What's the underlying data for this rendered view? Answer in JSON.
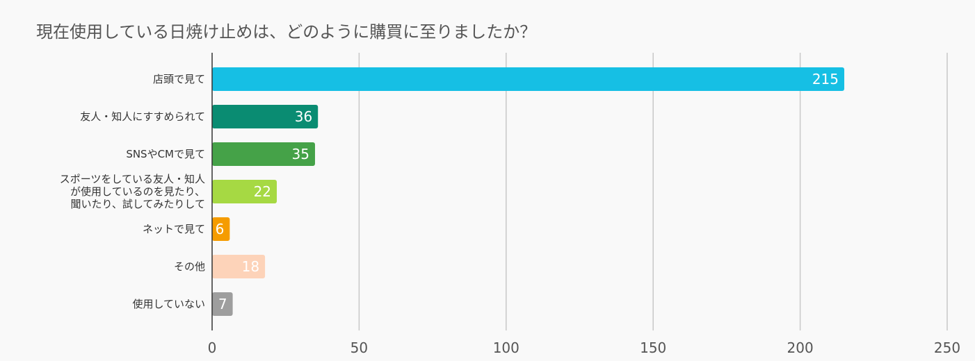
{
  "chart_data": {
    "type": "bar",
    "orientation": "horizontal",
    "title": "現在使用している日焼け止めは、どのように購買に至りましたか？",
    "categories": [
      [
        "店頭で見て"
      ],
      [
        "友人・知人にすすめられて"
      ],
      [
        "SNSやCMで見て"
      ],
      [
        "スポーツをしている友人・知人",
        "が使用しているのを見たり、",
        "聞いたり、試してみたりして"
      ],
      [
        "ネットで見て"
      ],
      [
        "その他"
      ],
      [
        "使用していない"
      ]
    ],
    "values": [
      215,
      36,
      35,
      22,
      6,
      18,
      7
    ],
    "colors": [
      "#16bfe4",
      "#0a8c72",
      "#45a248",
      "#a6d943",
      "#f59c00",
      "#fdd3b9",
      "#9e9e9e"
    ],
    "xlim": [
      0,
      250
    ],
    "xticks": [
      0,
      50,
      100,
      150,
      200,
      250
    ],
    "xlabel": "",
    "ylabel": "",
    "grid": true,
    "legend": "none",
    "data_labels": true
  }
}
